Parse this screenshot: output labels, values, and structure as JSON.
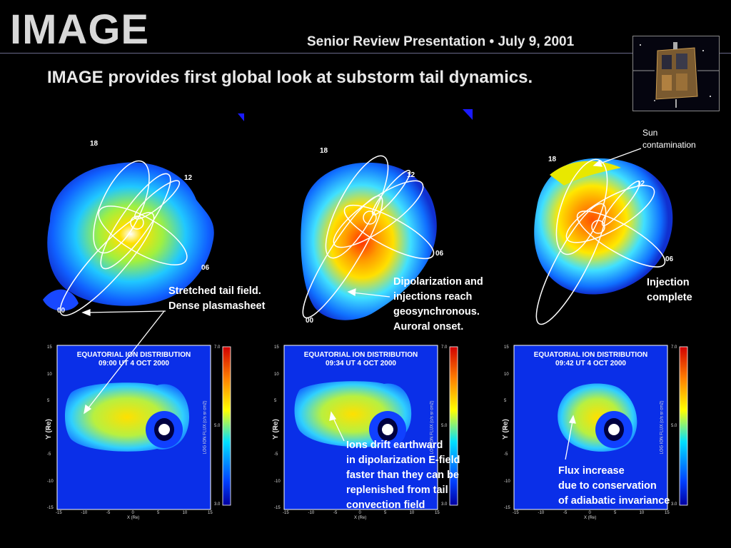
{
  "header": {
    "logo": "IMAGE",
    "subtitle": "Senior Review Presentation • July 9, 2001",
    "headline": "IMAGE provides first global look at substorm tail dynamics."
  },
  "images": {
    "mlt_labels": [
      "18",
      "12",
      "06",
      "00"
    ],
    "colors": {
      "background": "#000000",
      "field_lines": "#ffffff",
      "accent": "#1a1aff"
    }
  },
  "annotations": {
    "sun": "Sun\ncontamination",
    "stretched": "Stretched tail field.\nDense plasmasheet",
    "dipolarization": "Dipolarization  and\ninjections reach\ngeosynchronous.\nAuroral onset.",
    "injection": "Injection\ncomplete",
    "ions": "Ions drift earthward\nin dipolarization E-field\nfaster than they can be\nreplenished from tail\nconvection field",
    "flux": "Flux increase\ndue to conservation\nof adiabatic invariance"
  },
  "plots": [
    {
      "title": "EQUATORIAL ION DISTRIBUTION\n09:00 UT 4 OCT 2000"
    },
    {
      "title": "EQUATORIAL ION DISTRIBUTION\n09:34 UT 4 OCT 2000"
    },
    {
      "title": "EQUATORIAL ION DISTRIBUTION\n09:42 UT 4 OCT 2000"
    }
  ],
  "axes": {
    "x_ticks": [
      "-15",
      "-10",
      "-5",
      "0",
      "5",
      "10",
      "15"
    ],
    "y_ticks": [
      "15",
      "10",
      "5",
      "0",
      "-5",
      "-10",
      "-15"
    ],
    "colorbar_ticks": [
      "7.0",
      "5.0",
      "3.0"
    ],
    "x_label": "X (Re)",
    "y_label": "Y (Re)",
    "colorbar_label": "LOG ION FLUX (c/s sr cm2)"
  }
}
